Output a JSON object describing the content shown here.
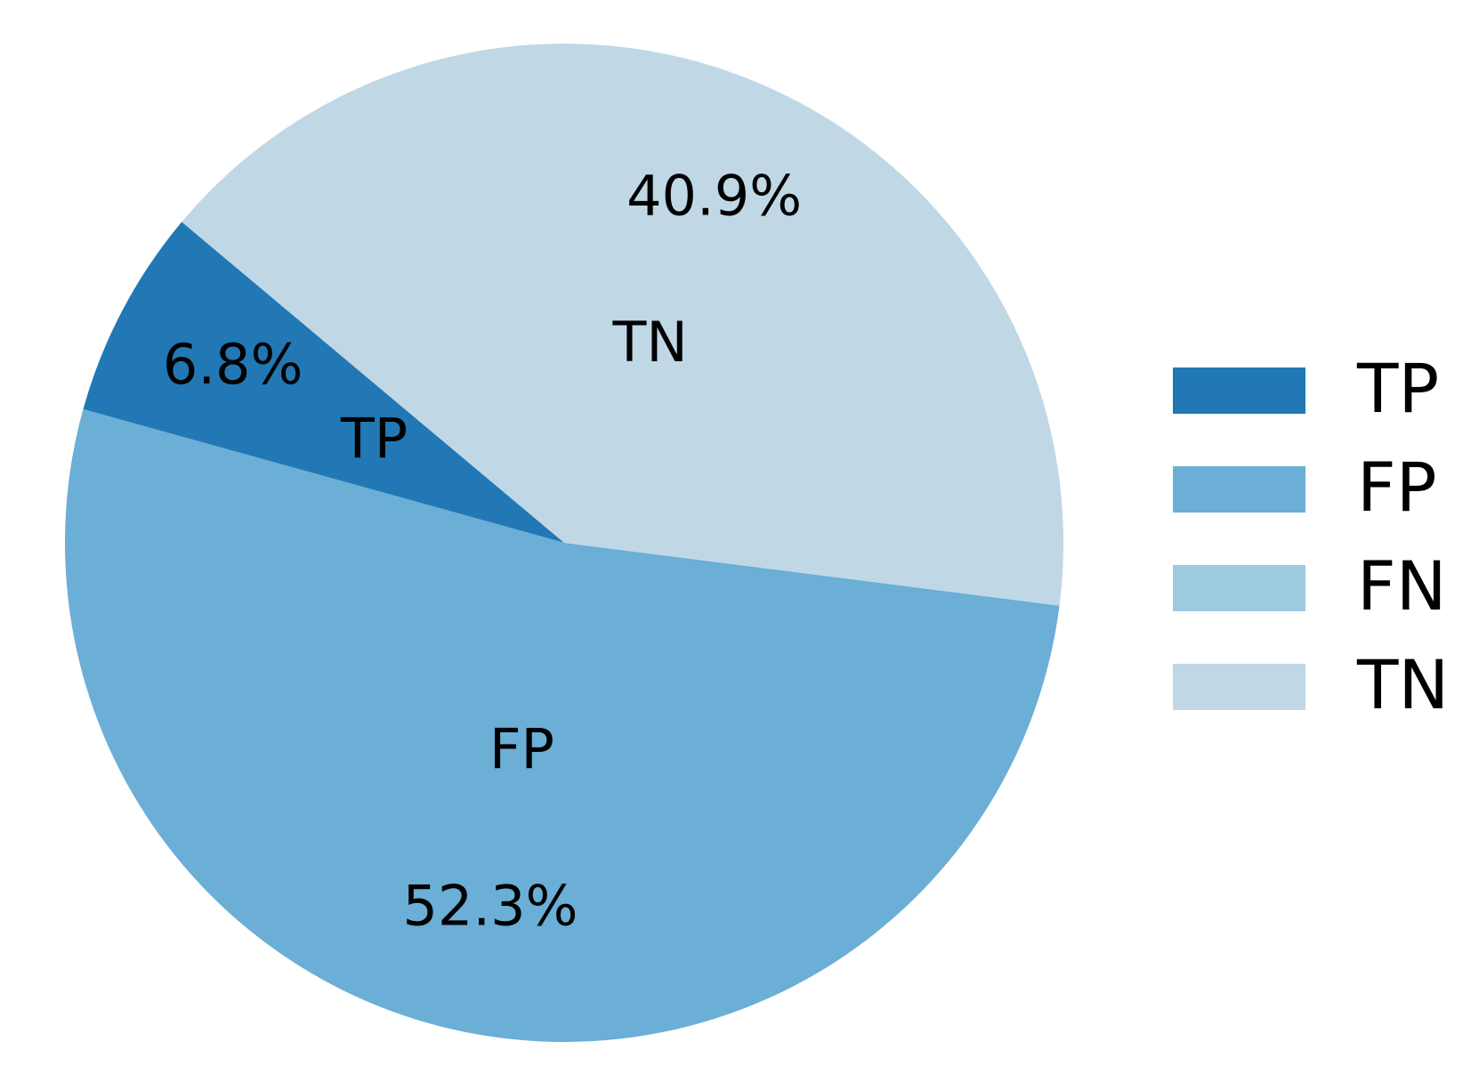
{
  "chart_data": {
    "type": "pie",
    "categories": [
      "TP",
      "FP",
      "FN",
      "TN"
    ],
    "values": [
      6.8,
      52.3,
      0,
      40.9
    ],
    "value_labels": [
      "6.8%",
      "52.3%",
      null,
      "40.9%"
    ],
    "colors": [
      "#2178b4",
      "#6baed6",
      "#9ecae1",
      "#c0d7e6"
    ],
    "start_angle": 140,
    "legend": "right"
  }
}
